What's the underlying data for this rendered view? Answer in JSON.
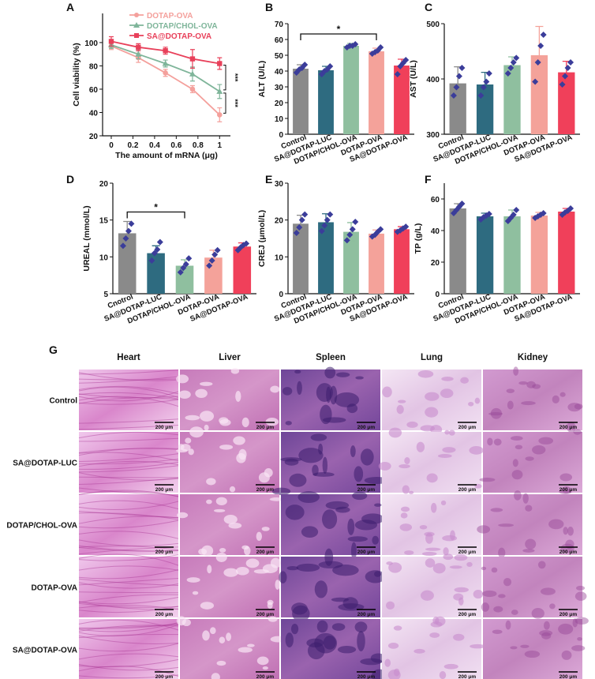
{
  "chart_data": [
    {
      "type": "line",
      "label": "A",
      "xlabel": "The amount of mRNA (μg)",
      "ylabel": "Cell viability (%)",
      "x": [
        0,
        0.25,
        0.5,
        0.75,
        1
      ],
      "xlim": [
        -0.08,
        1.1
      ],
      "xticks": [
        0,
        0.2,
        0.4,
        0.6,
        0.8,
        1
      ],
      "ylim": [
        20,
        125
      ],
      "yticks": [
        20,
        40,
        60,
        80,
        100
      ],
      "legend": "upper center",
      "series": [
        {
          "name": "DOTAP-OVA",
          "color": "#f4a09c",
          "marker": "circle",
          "values": [
            97,
            87,
            74,
            60,
            38
          ],
          "errors": [
            3,
            4,
            3,
            3,
            6
          ]
        },
        {
          "name": "DOTAP/CHOL-OVA",
          "color": "#7fb59a",
          "marker": "triangle",
          "values": [
            98,
            90,
            82,
            73,
            58
          ],
          "errors": [
            3,
            4,
            3,
            6,
            6
          ]
        },
        {
          "name": "SA@DOTAP-OVA",
          "color": "#e8405a",
          "marker": "square",
          "values": [
            101,
            96,
            93,
            86,
            82
          ],
          "errors": [
            4,
            3,
            3,
            8,
            5
          ]
        }
      ],
      "annotations": [
        {
          "text": "***"
        },
        {
          "text": "***"
        }
      ]
    },
    {
      "type": "bar",
      "label": "B",
      "ylabel": "ALT (U/L)",
      "categories": [
        "Control",
        "SA@DOTAP-LUC",
        "DOTAP/CHOL-OVA",
        "DOTAP-OVA",
        "SA@DOTAP-OVA"
      ],
      "colors": [
        "#8a8a8a",
        "#2e6b80",
        "#8fbf9f",
        "#f4a29a",
        "#f0405a"
      ],
      "point_color": "#3b3d9a",
      "values": [
        41.5,
        40.5,
        56,
        52.5,
        43.5
      ],
      "errors": [
        2.5,
        2.5,
        1.5,
        2,
        4
      ],
      "points": [
        [
          39,
          41,
          42,
          44
        ],
        [
          38,
          40,
          41,
          43
        ],
        [
          55,
          56,
          56,
          57
        ],
        [
          51,
          52,
          53,
          55
        ],
        [
          38,
          43,
          45,
          47
        ]
      ],
      "ylim": [
        0,
        70
      ],
      "yticks": [
        0,
        10,
        20,
        30,
        40,
        50,
        60,
        70
      ],
      "annotations": [
        {
          "text": "*"
        }
      ]
    },
    {
      "type": "bar",
      "label": "C",
      "ylabel": "AST (U/L)",
      "categories": [
        "Control",
        "SA@DOTAP-LUC",
        "DOTAP/CHOL-OVA",
        "DOTAP-OVA",
        "SA@DOTAP-OVA"
      ],
      "colors": [
        "#8a8a8a",
        "#2e6b80",
        "#8fbf9f",
        "#f4a29a",
        "#f0405a"
      ],
      "point_color": "#3b3d9a",
      "values": [
        392,
        390,
        425,
        443,
        412
      ],
      "errors": [
        30,
        22,
        15,
        52,
        20
      ],
      "points": [
        [
          370,
          385,
          405,
          420
        ],
        [
          370,
          385,
          395,
          410
        ],
        [
          410,
          420,
          430,
          438
        ],
        [
          395,
          430,
          460,
          480
        ],
        [
          390,
          405,
          420,
          430
        ]
      ],
      "ylim": [
        300,
        500
      ],
      "yticks": [
        300,
        400,
        500
      ]
    },
    {
      "type": "bar",
      "label": "D",
      "ylabel": "UREAL (mmol/L)",
      "categories": [
        "Cnotrol",
        "SA@DOTAP-LUC",
        "DOTAP/CHOL-OVA",
        "DOTAP-OVA",
        "SA@DOTAP-OVA"
      ],
      "colors": [
        "#8a8a8a",
        "#2e6b80",
        "#8fbf9f",
        "#f4a29a",
        "#f0405a"
      ],
      "point_color": "#3b3d9a",
      "values": [
        13.2,
        10.5,
        8.8,
        9.9,
        11.4
      ],
      "errors": [
        1.6,
        1,
        0.8,
        1,
        0.5
      ],
      "points": [
        [
          11.5,
          12.5,
          13.5,
          14.5
        ],
        [
          9.5,
          10.5,
          11,
          12
        ],
        [
          7.9,
          8.5,
          9,
          9.8
        ],
        [
          8.8,
          9.5,
          10.3,
          10.9
        ],
        [
          10.9,
          11.3,
          11.6,
          11.8
        ]
      ],
      "ylim": [
        5,
        20
      ],
      "yticks": [
        5,
        10,
        15,
        20
      ],
      "annotations": [
        {
          "text": "*"
        }
      ]
    },
    {
      "type": "bar",
      "label": "E",
      "ylabel": "CREJ (μmol/L)",
      "categories": [
        "Control",
        "SA@DOTAP-LUC",
        "DOTAP/CHOL-OVA",
        "DOTAP-OVA",
        "SA@DOTAP-OVA"
      ],
      "colors": [
        "#8a8a8a",
        "#2e6b80",
        "#8fbf9f",
        "#f4a29a",
        "#f0405a"
      ],
      "point_color": "#3b3d9a",
      "values": [
        19,
        19.4,
        16.8,
        16.3,
        17.5
      ],
      "errors": [
        2.3,
        2.3,
        2.5,
        1,
        0.7
      ],
      "points": [
        [
          16.5,
          18,
          20,
          21.5
        ],
        [
          17,
          18.5,
          20,
          21.5
        ],
        [
          14.5,
          16,
          17.5,
          19.5
        ],
        [
          15.5,
          16,
          16.8,
          17.5
        ],
        [
          16.8,
          17.2,
          17.7,
          18.2
        ]
      ],
      "ylim": [
        0,
        30
      ],
      "yticks": [
        0,
        10,
        20,
        30
      ]
    },
    {
      "type": "bar",
      "label": "F",
      "ylabel": "TP (g/L)",
      "categories": [
        "Control",
        "SA@DOTAP-LUC",
        "DOTAP/CHOL-OVA",
        "DOTAP-OVA",
        "SA@DOTAP-OVA"
      ],
      "colors": [
        "#8a8a8a",
        "#2e6b80",
        "#8fbf9f",
        "#f4a29a",
        "#f0405a"
      ],
      "point_color": "#3b3d9a",
      "values": [
        54,
        49,
        49,
        49.5,
        52
      ],
      "errors": [
        3,
        2,
        4,
        2,
        2
      ],
      "points": [
        [
          51,
          53,
          55,
          57
        ],
        [
          47,
          48.5,
          49.5,
          50.5
        ],
        [
          46,
          48,
          50,
          53
        ],
        [
          48,
          49,
          50,
          51
        ],
        [
          50,
          51.5,
          52.5,
          54
        ]
      ],
      "ylim": [
        0,
        70
      ],
      "yticks": [
        0,
        20,
        40,
        60
      ]
    }
  ],
  "histology": {
    "label": "G",
    "columns": [
      "Heart",
      "Liver",
      "Spleen",
      "Lung",
      "Kidney"
    ],
    "rows": [
      "Control",
      "SA@DOTAP-LUC",
      "DOTAP/CHOL-OVA",
      "DOTAP-OVA",
      "SA@DOTAP-OVA"
    ],
    "scale_bar": "200 μm"
  }
}
